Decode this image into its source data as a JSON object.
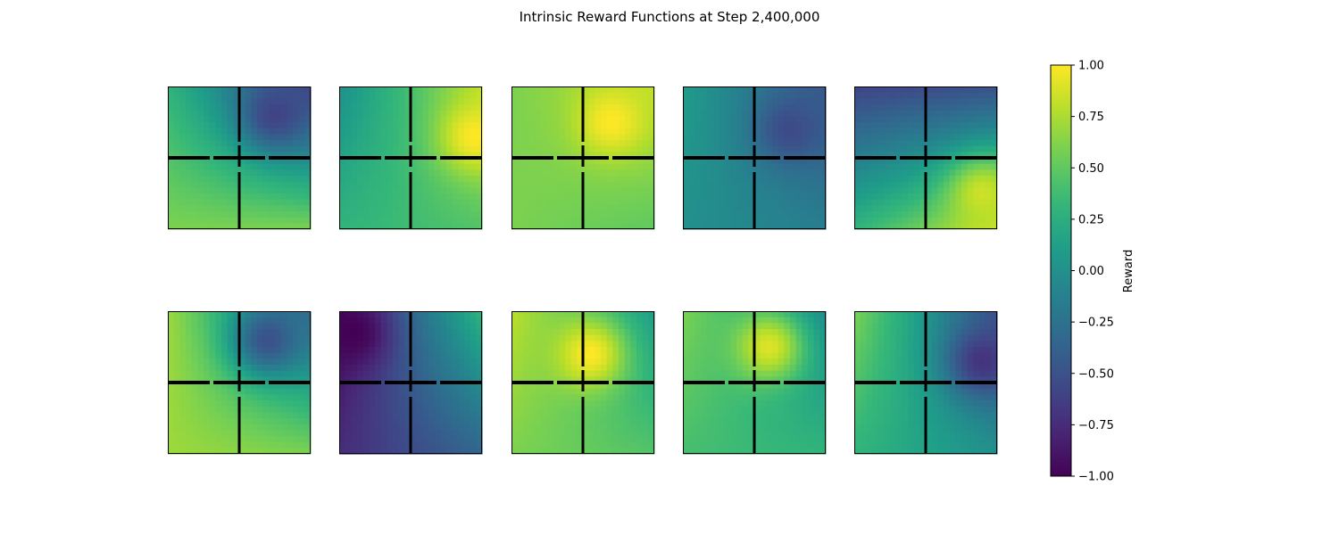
{
  "title": "Intrinsic Reward Functions at Step 2,400,000",
  "colorbar": {
    "label": "Reward",
    "range": [
      -1.0,
      1.0
    ],
    "ticks": [
      1.0,
      0.75,
      0.5,
      0.25,
      0.0,
      -0.25,
      -0.5,
      -0.75,
      -1.0
    ],
    "tick_labels": [
      "1.00",
      "0.75",
      "0.50",
      "0.25",
      "0.00",
      "−0.25",
      "−0.50",
      "−0.75",
      "−1.00"
    ],
    "colormap": "viridis"
  },
  "chart_data": {
    "type": "heatmap",
    "layout": {
      "rows": 2,
      "cols": 5
    },
    "vmin": -1.0,
    "vmax": 1.0,
    "environment": "four-rooms grid with walls through the center",
    "panels": [
      {
        "anchors": [
          0.3,
          -0.6,
          0.6,
          0.6
        ],
        "peak": {
          "x": 0.75,
          "y": 0.2,
          "value": -0.6
        }
      },
      {
        "anchors": [
          0.0,
          0.8,
          0.3,
          0.45
        ],
        "peak": {
          "x": 0.95,
          "y": 0.35,
          "value": 1.0
        }
      },
      {
        "anchors": [
          0.6,
          0.8,
          0.6,
          0.5
        ],
        "peak": {
          "x": 0.7,
          "y": 0.25,
          "value": 1.0
        }
      },
      {
        "anchors": [
          0.1,
          -0.45,
          0.0,
          -0.15
        ],
        "peak": {
          "x": 0.75,
          "y": 0.3,
          "value": -0.55
        }
      },
      {
        "anchors": [
          -0.6,
          -0.5,
          0.3,
          0.85
        ],
        "peak": {
          "x": 0.9,
          "y": 0.75,
          "value": 0.85
        }
      },
      {
        "anchors": [
          0.7,
          -0.3,
          0.7,
          0.6
        ],
        "peak": {
          "x": 0.7,
          "y": 0.2,
          "value": -0.5
        }
      },
      {
        "anchors": [
          -0.95,
          0.3,
          -0.75,
          -0.35
        ],
        "peak": {
          "x": 0.1,
          "y": 0.15,
          "value": -1.0
        }
      },
      {
        "anchors": [
          0.8,
          0.1,
          0.6,
          0.45
        ],
        "peak": {
          "x": 0.55,
          "y": 0.3,
          "value": 1.0
        }
      },
      {
        "anchors": [
          0.6,
          -0.05,
          0.4,
          0.3
        ],
        "peak": {
          "x": 0.6,
          "y": 0.25,
          "value": 0.9
        }
      },
      {
        "anchors": [
          0.6,
          -0.5,
          0.3,
          0.0
        ],
        "peak": {
          "x": 0.9,
          "y": 0.35,
          "value": -0.7
        }
      }
    ]
  }
}
